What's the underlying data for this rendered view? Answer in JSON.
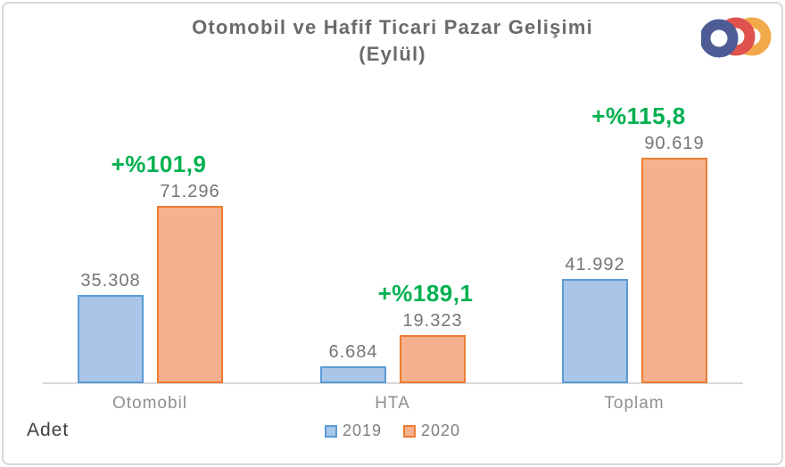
{
  "header": {
    "title_line1": "Otomobil ve Hafif Ticari Pazar Gelişimi",
    "title_line2": "(Eylül)",
    "logo_name": "odd-logo",
    "logo_colors": {
      "blue": "#4D5C95",
      "red": "#E0524E",
      "orange": "#F2A94A"
    }
  },
  "unit_label": "Adet",
  "chart_data": {
    "type": "bar",
    "title": "Otomobil ve Hafif Ticari Pazar Gelişimi (Eylül)",
    "categories": [
      "Otomobil",
      "HTA",
      "Toplam"
    ],
    "series": [
      {
        "name": "2019",
        "values": [
          35308,
          6684,
          41992
        ],
        "value_labels": [
          "35.308",
          "6.684",
          "41.992"
        ],
        "fill": "#A9C5E8",
        "border": "#5B9BD5"
      },
      {
        "name": "2020",
        "values": [
          71296,
          19323,
          90619
        ],
        "value_labels": [
          "71.296",
          "19.323",
          "90.619"
        ],
        "fill": "#F5B08D",
        "border": "#ED7D31"
      }
    ],
    "growth_labels": [
      "+%101,9",
      "+%189,1",
      "+%115,8"
    ],
    "growth_color": "#00B050",
    "xlabel": "",
    "ylabel": "Adet",
    "ylim": [
      0,
      95000
    ],
    "grid": false,
    "legend_position": "bottom",
    "value_label_color": "#757575",
    "category_label_color": "#8F8F8F",
    "axis_line_color": "#D9D9D9"
  }
}
